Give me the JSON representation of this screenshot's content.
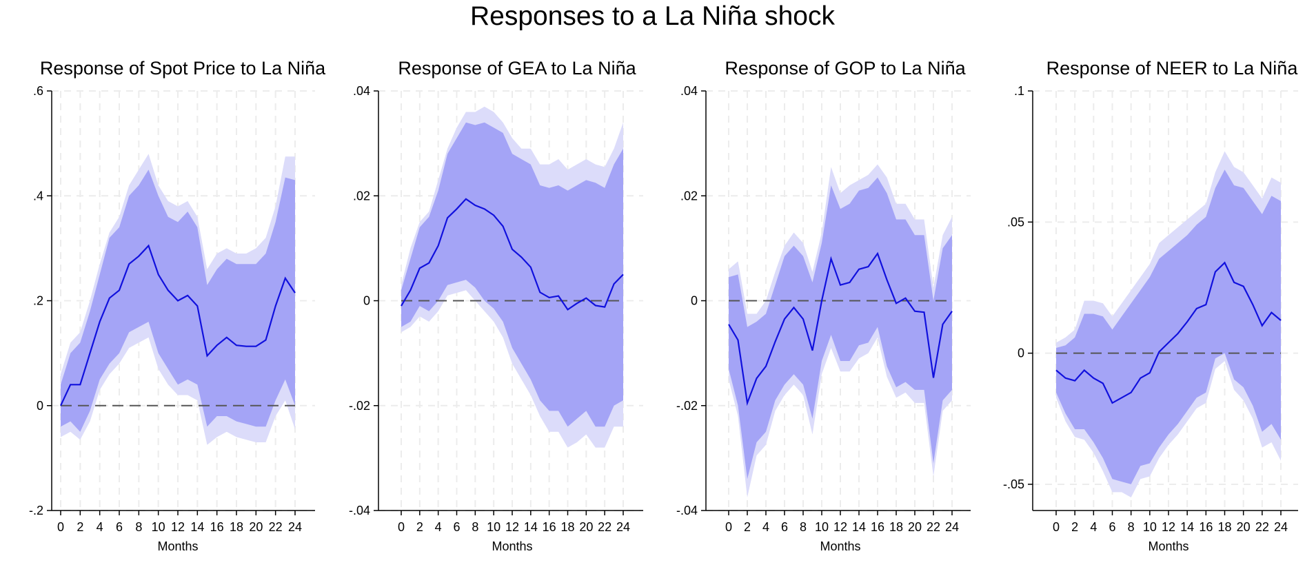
{
  "figure": {
    "title": "Responses to a La Niña shock",
    "colors": {
      "ci_outer": "#dcdcfa",
      "ci_inner": "#a4a4f6",
      "irf_line": "#1010dd",
      "zero_line": "#555555",
      "grid": "#ececec",
      "axis": "#000000"
    }
  },
  "chart_data": [
    {
      "type": "area",
      "title": "Response of Spot Price to La Niña",
      "xlabel": "Months",
      "ylabel": "",
      "xlim": [
        0,
        24
      ],
      "ylim": [
        -0.2,
        0.6
      ],
      "xticks": [
        0,
        2,
        4,
        6,
        8,
        10,
        12,
        14,
        16,
        18,
        20,
        22,
        24
      ],
      "yticks": [
        -0.2,
        0,
        0.2,
        0.4,
        0.6
      ],
      "ytick_labels": [
        "-.2",
        "0",
        ".2",
        ".4",
        ".6"
      ],
      "grid": true,
      "zero_line": "dashed",
      "x": [
        0,
        1,
        2,
        3,
        4,
        5,
        6,
        7,
        8,
        9,
        10,
        11,
        12,
        13,
        14,
        15,
        16,
        17,
        18,
        19,
        20,
        21,
        22,
        23,
        24
      ],
      "series": [
        {
          "role": "irf",
          "values": [
            0.0,
            0.04,
            0.04,
            0.1,
            0.16,
            0.205,
            0.22,
            0.27,
            0.285,
            0.305,
            0.25,
            0.22,
            0.2,
            0.21,
            0.19,
            0.095,
            0.115,
            0.13,
            0.115,
            0.113,
            0.113,
            0.125,
            0.19,
            0.243,
            0.215
          ]
        },
        {
          "role": "ci_inner_upper",
          "values": [
            0.04,
            0.1,
            0.12,
            0.18,
            0.25,
            0.32,
            0.34,
            0.4,
            0.42,
            0.45,
            0.4,
            0.36,
            0.35,
            0.37,
            0.34,
            0.23,
            0.26,
            0.28,
            0.27,
            0.27,
            0.27,
            0.29,
            0.35,
            0.435,
            0.43
          ]
        },
        {
          "role": "ci_inner_lower",
          "values": [
            -0.04,
            -0.03,
            -0.05,
            -0.01,
            0.05,
            0.08,
            0.1,
            0.14,
            0.15,
            0.16,
            0.1,
            0.07,
            0.04,
            0.05,
            0.04,
            -0.04,
            -0.02,
            -0.02,
            -0.03,
            -0.035,
            -0.04,
            -0.04,
            0.01,
            0.05,
            0.0
          ]
        },
        {
          "role": "ci_outer_upper",
          "values": [
            0.06,
            0.12,
            0.14,
            0.2,
            0.27,
            0.33,
            0.36,
            0.42,
            0.45,
            0.48,
            0.42,
            0.39,
            0.38,
            0.39,
            0.36,
            0.26,
            0.29,
            0.3,
            0.29,
            0.29,
            0.3,
            0.32,
            0.38,
            0.475,
            0.475
          ]
        },
        {
          "role": "ci_outer_lower",
          "values": [
            -0.06,
            -0.05,
            -0.065,
            -0.03,
            0.03,
            0.06,
            0.08,
            0.11,
            0.12,
            0.13,
            0.07,
            0.04,
            0.02,
            0.02,
            0.01,
            -0.075,
            -0.06,
            -0.05,
            -0.06,
            -0.065,
            -0.07,
            -0.07,
            -0.02,
            0.01,
            -0.045
          ]
        }
      ]
    },
    {
      "type": "area",
      "title": "Response of GEA to La Niña",
      "xlabel": "Months",
      "ylabel": "",
      "xlim": [
        0,
        24
      ],
      "ylim": [
        -0.04,
        0.04
      ],
      "xticks": [
        0,
        2,
        4,
        6,
        8,
        10,
        12,
        14,
        16,
        18,
        20,
        22,
        24
      ],
      "yticks": [
        -0.04,
        -0.02,
        0,
        0.02,
        0.04
      ],
      "ytick_labels": [
        "-.04",
        "-.02",
        "0",
        ".02",
        ".04"
      ],
      "grid": true,
      "zero_line": "dashed",
      "x": [
        0,
        1,
        2,
        3,
        4,
        5,
        6,
        7,
        8,
        9,
        10,
        11,
        12,
        13,
        14,
        15,
        16,
        17,
        18,
        19,
        20,
        21,
        22,
        23,
        24
      ],
      "series": [
        {
          "role": "irf",
          "values": [
            -0.001,
            0.002,
            0.0062,
            0.0072,
            0.0105,
            0.0158,
            0.0175,
            0.0194,
            0.0182,
            0.0175,
            0.0163,
            0.0142,
            0.0098,
            0.0083,
            0.0064,
            0.0016,
            0.0006,
            0.0009,
            -0.0017,
            -0.0005,
            0.0005,
            -0.0009,
            -0.0012,
            0.0032,
            0.005
          ]
        },
        {
          "role": "ci_inner_upper",
          "values": [
            0.002,
            0.008,
            0.014,
            0.016,
            0.021,
            0.028,
            0.031,
            0.034,
            0.0335,
            0.034,
            0.033,
            0.032,
            0.028,
            0.027,
            0.026,
            0.022,
            0.0215,
            0.022,
            0.021,
            0.022,
            0.023,
            0.0225,
            0.0215,
            0.026,
            0.029
          ]
        },
        {
          "role": "ci_inner_lower",
          "values": [
            -0.005,
            -0.004,
            -0.001,
            -0.002,
            0.0,
            0.003,
            0.0035,
            0.004,
            0.0025,
            0.0,
            -0.0015,
            -0.004,
            -0.009,
            -0.012,
            -0.015,
            -0.019,
            -0.021,
            -0.021,
            -0.024,
            -0.0225,
            -0.021,
            -0.024,
            -0.024,
            -0.02,
            -0.019
          ]
        },
        {
          "role": "ci_outer_upper",
          "values": [
            0.003,
            0.01,
            0.015,
            0.017,
            0.023,
            0.029,
            0.033,
            0.036,
            0.036,
            0.037,
            0.036,
            0.034,
            0.031,
            0.029,
            0.029,
            0.026,
            0.026,
            0.027,
            0.025,
            0.026,
            0.027,
            0.026,
            0.0255,
            0.029,
            0.034
          ]
        },
        {
          "role": "ci_outer_lower",
          "values": [
            -0.006,
            -0.005,
            -0.003,
            -0.004,
            -0.002,
            0.001,
            0.0015,
            0.002,
            0.0,
            -0.002,
            -0.004,
            -0.007,
            -0.012,
            -0.015,
            -0.018,
            -0.022,
            -0.025,
            -0.025,
            -0.028,
            -0.027,
            -0.0255,
            -0.028,
            -0.028,
            -0.024,
            -0.024
          ]
        }
      ]
    },
    {
      "type": "area",
      "title": "Response of GOP to La Niña",
      "xlabel": "Months",
      "ylabel": "",
      "xlim": [
        0,
        24
      ],
      "ylim": [
        -0.04,
        0.04
      ],
      "xticks": [
        0,
        2,
        4,
        6,
        8,
        10,
        12,
        14,
        16,
        18,
        20,
        22,
        24
      ],
      "yticks": [
        -0.04,
        -0.02,
        0,
        0.02,
        0.04
      ],
      "ytick_labels": [
        "-.04",
        "-.02",
        "0",
        ".02",
        ".04"
      ],
      "grid": true,
      "zero_line": "dashed",
      "x": [
        0,
        1,
        2,
        3,
        4,
        5,
        6,
        7,
        8,
        9,
        10,
        11,
        12,
        13,
        14,
        15,
        16,
        17,
        18,
        19,
        20,
        21,
        22,
        23,
        24
      ],
      "series": [
        {
          "role": "irf",
          "values": [
            -0.0045,
            -0.0075,
            -0.0195,
            -0.0148,
            -0.0125,
            -0.0078,
            -0.0035,
            -0.0013,
            -0.0035,
            -0.0095,
            0.0,
            0.008,
            0.003,
            0.0035,
            0.006,
            0.0065,
            0.009,
            0.004,
            -0.0005,
            0.0005,
            -0.002,
            -0.0022,
            -0.0147,
            -0.0045,
            -0.002
          ]
        },
        {
          "role": "ci_inner_upper",
          "values": [
            0.0045,
            0.005,
            -0.005,
            -0.004,
            -0.0025,
            0.003,
            0.0085,
            0.0105,
            0.0085,
            0.0035,
            0.011,
            0.022,
            0.0175,
            0.0185,
            0.021,
            0.0215,
            0.0235,
            0.0205,
            0.0155,
            0.0155,
            0.0125,
            0.0125,
            0.0,
            0.01,
            0.0125
          ]
        },
        {
          "role": "ci_inner_lower",
          "values": [
            -0.013,
            -0.02,
            -0.034,
            -0.027,
            -0.025,
            -0.019,
            -0.016,
            -0.014,
            -0.016,
            -0.0225,
            -0.0115,
            -0.0065,
            -0.0115,
            -0.0115,
            -0.0085,
            -0.008,
            -0.005,
            -0.0125,
            -0.0165,
            -0.0155,
            -0.017,
            -0.017,
            -0.031,
            -0.019,
            -0.017
          ]
        },
        {
          "role": "ci_outer_upper",
          "values": [
            0.006,
            0.0075,
            -0.0025,
            -0.0025,
            0.0,
            0.0055,
            0.0105,
            0.013,
            0.011,
            0.0055,
            0.013,
            0.0255,
            0.0205,
            0.022,
            0.023,
            0.024,
            0.026,
            0.0235,
            0.0185,
            0.0185,
            0.0155,
            0.0155,
            0.0025,
            0.0125,
            0.016
          ]
        },
        {
          "role": "ci_outer_lower",
          "values": [
            -0.015,
            -0.022,
            -0.0375,
            -0.0295,
            -0.0275,
            -0.021,
            -0.018,
            -0.016,
            -0.018,
            -0.0255,
            -0.014,
            -0.009,
            -0.0135,
            -0.0135,
            -0.011,
            -0.01,
            -0.007,
            -0.0145,
            -0.0185,
            -0.0175,
            -0.0195,
            -0.0195,
            -0.0335,
            -0.021,
            -0.019
          ]
        }
      ]
    },
    {
      "type": "area",
      "title": "Response of NEER to La Niña",
      "xlabel": "Months",
      "ylabel": "",
      "xlim": [
        0,
        24
      ],
      "ylim": [
        -0.06,
        0.1
      ],
      "xticks": [
        0,
        2,
        4,
        6,
        8,
        10,
        12,
        14,
        16,
        18,
        20,
        22,
        24
      ],
      "yticks": [
        -0.05,
        0,
        0.05,
        0.1
      ],
      "ytick_labels": [
        "-.05",
        "0",
        ".05",
        ".1"
      ],
      "grid": true,
      "zero_line": "dashed",
      "x": [
        0,
        1,
        2,
        3,
        4,
        5,
        6,
        7,
        8,
        9,
        10,
        11,
        12,
        13,
        14,
        15,
        16,
        17,
        18,
        19,
        20,
        21,
        22,
        23,
        24
      ],
      "series": [
        {
          "role": "irf",
          "values": [
            -0.0065,
            -0.0095,
            -0.0105,
            -0.0065,
            -0.0095,
            -0.0115,
            -0.019,
            -0.017,
            -0.015,
            -0.0095,
            -0.0075,
            0.0005,
            0.004,
            0.0075,
            0.012,
            0.017,
            0.0185,
            0.031,
            0.0345,
            0.027,
            0.0255,
            0.0185,
            0.0105,
            0.0155,
            0.0125
          ]
        },
        {
          "role": "ci_inner_upper",
          "values": [
            0.002,
            0.003,
            0.006,
            0.015,
            0.015,
            0.014,
            0.009,
            0.014,
            0.019,
            0.024,
            0.029,
            0.036,
            0.039,
            0.042,
            0.045,
            0.049,
            0.052,
            0.063,
            0.07,
            0.064,
            0.063,
            0.058,
            0.053,
            0.06,
            0.058
          ]
        },
        {
          "role": "ci_inner_lower",
          "values": [
            -0.015,
            -0.023,
            -0.029,
            -0.029,
            -0.034,
            -0.04,
            -0.048,
            -0.049,
            -0.05,
            -0.043,
            -0.042,
            -0.036,
            -0.031,
            -0.027,
            -0.022,
            -0.017,
            -0.015,
            -0.002,
            0.0,
            -0.01,
            -0.013,
            -0.02,
            -0.03,
            -0.027,
            -0.033
          ]
        },
        {
          "role": "ci_outer_upper",
          "values": [
            0.004,
            0.006,
            0.009,
            0.02,
            0.02,
            0.019,
            0.014,
            0.019,
            0.024,
            0.029,
            0.034,
            0.042,
            0.045,
            0.048,
            0.051,
            0.054,
            0.057,
            0.069,
            0.077,
            0.071,
            0.069,
            0.064,
            0.059,
            0.067,
            0.065
          ]
        },
        {
          "role": "ci_outer_lower",
          "values": [
            -0.017,
            -0.026,
            -0.032,
            -0.033,
            -0.038,
            -0.045,
            -0.053,
            -0.053,
            -0.055,
            -0.048,
            -0.047,
            -0.04,
            -0.035,
            -0.031,
            -0.026,
            -0.021,
            -0.019,
            -0.006,
            -0.003,
            -0.014,
            -0.018,
            -0.025,
            -0.036,
            -0.034,
            -0.041
          ]
        }
      ]
    }
  ]
}
